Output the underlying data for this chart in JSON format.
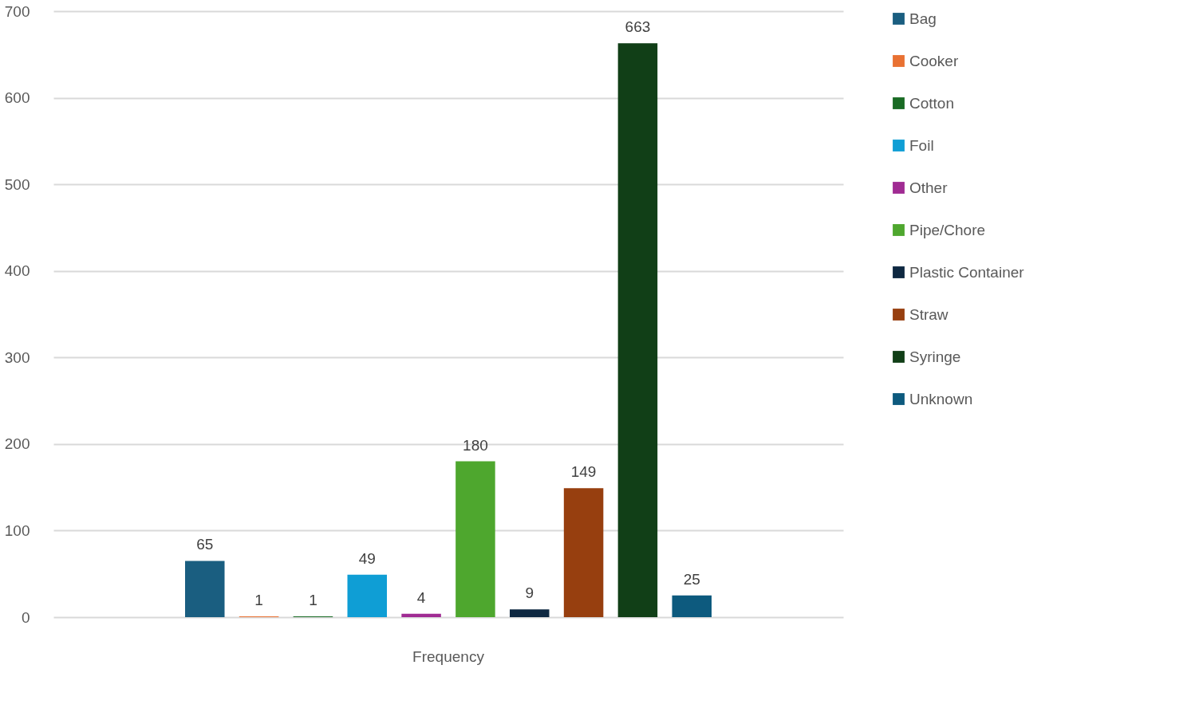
{
  "chart_data": {
    "type": "bar",
    "categories": [
      "Frequency"
    ],
    "series": [
      {
        "name": "Bag",
        "color": "#1a5e80",
        "values": [
          65
        ]
      },
      {
        "name": "Cooker",
        "color": "#e97132",
        "values": [
          1
        ]
      },
      {
        "name": "Cotton",
        "color": "#196b24",
        "values": [
          1
        ]
      },
      {
        "name": "Foil",
        "color": "#0f9ed5",
        "values": [
          49
        ]
      },
      {
        "name": "Other",
        "color": "#a02b93",
        "values": [
          4
        ]
      },
      {
        "name": "Pipe/Chore",
        "color": "#4ea72e",
        "values": [
          180
        ]
      },
      {
        "name": "Plastic Container",
        "color": "#0e2841",
        "values": [
          9
        ]
      },
      {
        "name": "Straw",
        "color": "#973f0f",
        "values": [
          149
        ]
      },
      {
        "name": "Syringe",
        "color": "#113f17",
        "values": [
          663
        ]
      },
      {
        "name": "Unknown",
        "color": "#0d5a7e",
        "values": [
          25
        ]
      }
    ],
    "ylim": [
      0,
      700
    ],
    "yticks": [
      0,
      100,
      200,
      300,
      400,
      500,
      600,
      700
    ],
    "grid": "y",
    "legend": "right",
    "data_labels": true
  }
}
